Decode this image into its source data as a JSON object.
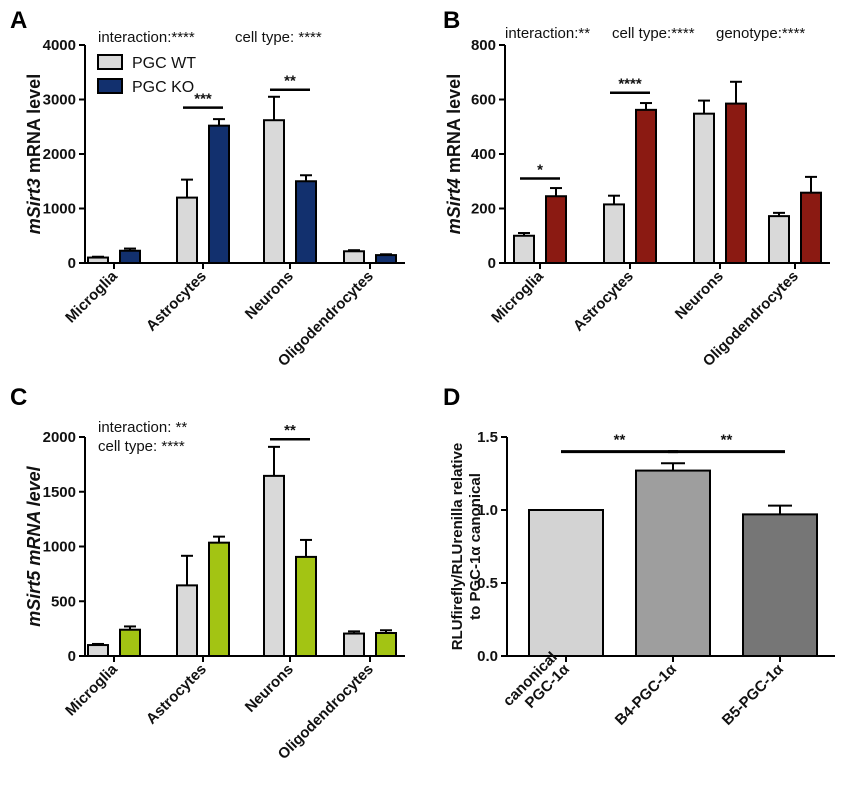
{
  "chart_data": [
    {
      "panel_label": "A",
      "type": "bar",
      "ylabel_italic": "mSirt3",
      "ylabel_rest": " mRNA level",
      "categories": [
        "Microglia",
        "Astrocytes",
        "Neurons",
        "Oligodendrocytes"
      ],
      "ylim": [
        0,
        4000
      ],
      "yticks": [
        "0",
        "1000",
        "2000",
        "3000",
        "4000"
      ],
      "ytick_values": [
        0,
        1000,
        2000,
        3000,
        4000
      ],
      "series": [
        {
          "name": "PGC WT",
          "color": "#d9d9d9",
          "values": [
            100,
            1200,
            2620,
            215
          ],
          "errors": [
            15,
            330,
            430,
            20
          ]
        },
        {
          "name": "PGC KO",
          "color": "#12306e",
          "values": [
            225,
            2520,
            1500,
            145
          ],
          "errors": [
            40,
            120,
            110,
            15
          ]
        }
      ],
      "stats_text": [
        "interaction:****",
        "cell type: ****"
      ],
      "legend": [
        "PGC WT",
        "PGC KO"
      ],
      "significance": [
        {
          "category_index": 1,
          "label": "***",
          "y": 2850
        },
        {
          "category_index": 2,
          "label": "**",
          "y": 3180
        }
      ]
    },
    {
      "panel_label": "B",
      "type": "bar",
      "ylabel_italic": "mSirt4",
      "ylabel_rest": " mRNA level",
      "categories": [
        "Microglia",
        "Astrocytes",
        "Neurons",
        "Oligodendrocytes"
      ],
      "ylim": [
        0,
        800
      ],
      "yticks": [
        "0",
        "200",
        "400",
        "600",
        "800"
      ],
      "ytick_values": [
        0,
        200,
        400,
        600,
        800
      ],
      "series": [
        {
          "name": "PGC WT",
          "color": "#d9d9d9",
          "values": [
            100,
            215,
            548,
            172
          ],
          "errors": [
            10,
            32,
            48,
            12
          ]
        },
        {
          "name": "PGC KO",
          "color": "#8b1a12",
          "values": [
            245,
            562,
            585,
            258
          ],
          "errors": [
            30,
            25,
            80,
            58
          ]
        }
      ],
      "stats_text": [
        "interaction:**",
        "cell type:****",
        "genotype:****"
      ],
      "significance": [
        {
          "category_index": 0,
          "label": "*",
          "y": 310
        },
        {
          "category_index": 1,
          "label": "****",
          "y": 625
        }
      ]
    },
    {
      "panel_label": "C",
      "type": "bar",
      "ylabel_italic": "mSirt5 mRNA level",
      "ylabel_rest": "",
      "categories": [
        "Microglia",
        "Astrocytes",
        "Neurons",
        "Oligodendrocytes"
      ],
      "ylim": [
        0,
        2000
      ],
      "yticks": [
        "0",
        "500",
        "1000",
        "1500",
        "2000"
      ],
      "ytick_values": [
        0,
        500,
        1000,
        1500,
        2000
      ],
      "series": [
        {
          "name": "PGC WT",
          "color": "#d9d9d9",
          "values": [
            100,
            645,
            1645,
            205
          ],
          "errors": [
            10,
            270,
            265,
            20
          ]
        },
        {
          "name": "PGC KO",
          "color": "#a3c413",
          "values": [
            240,
            1035,
            905,
            210
          ],
          "errors": [
            30,
            55,
            155,
            25
          ]
        }
      ],
      "stats_text": [
        "interaction: **",
        "cell type: ****"
      ],
      "significance": [
        {
          "category_index": 2,
          "label": "**",
          "y": 1980
        }
      ]
    },
    {
      "panel_label": "D",
      "type": "bar",
      "ylabel_lines": [
        "RLUfirefly/RLUrenilla relative",
        "to PGC-1α canonical"
      ],
      "categories": [
        "canonical PGC-1α",
        "B4-PGC-1α",
        "B5-PGC-1α"
      ],
      "category_lines": [
        [
          "canonical",
          "PGC-1α"
        ],
        [
          "B4-PGC-1α"
        ],
        [
          "B5-PGC-1α"
        ]
      ],
      "ylim": [
        0,
        1.5
      ],
      "yticks": [
        "0.0",
        "0.5",
        "1.0",
        "1.5"
      ],
      "ytick_values": [
        0,
        0.5,
        1.0,
        1.5
      ],
      "values": [
        1.0,
        1.27,
        0.97
      ],
      "errors": [
        0,
        0.05,
        0.06
      ],
      "colors": [
        "#d3d3d3",
        "#9e9e9e",
        "#767676"
      ],
      "significance": [
        {
          "from": 0,
          "to": 1,
          "label": "**",
          "y": 1.4
        },
        {
          "from": 1,
          "to": 2,
          "label": "**",
          "y": 1.4
        }
      ]
    }
  ]
}
